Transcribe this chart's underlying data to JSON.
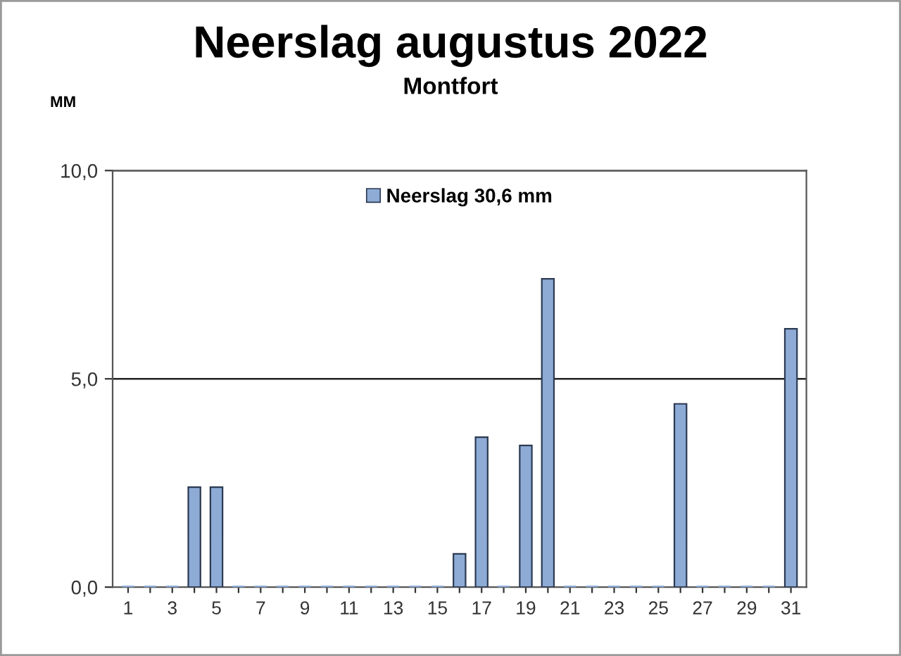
{
  "chart_data": {
    "type": "bar",
    "title": "Neerslag augustus 2022",
    "subtitle": "Montfort",
    "ylabel": "MM",
    "categories": [
      "1",
      null,
      "3",
      null,
      "5",
      null,
      "7",
      null,
      "9",
      null,
      "11",
      null,
      "13",
      null,
      "15",
      null,
      "17",
      null,
      "19",
      null,
      "21",
      null,
      "23",
      null,
      "25",
      null,
      "27",
      null,
      "29",
      null,
      "31"
    ],
    "series": [
      {
        "name": "Neerslag 30,6 mm",
        "color": "#8eabd6",
        "values": [
          0,
          0,
          0,
          2.4,
          2.4,
          0,
          0,
          0,
          0,
          0,
          0,
          0,
          0,
          0,
          0,
          0.8,
          3.6,
          0,
          3.4,
          7.4,
          0,
          0,
          0,
          0,
          0,
          4.4,
          0,
          0,
          0,
          0,
          6.2
        ]
      }
    ],
    "ylim": [
      0,
      10
    ],
    "yticks": [
      {
        "value": 0,
        "label": "0,0"
      },
      {
        "value": 5,
        "label": "5,0"
      },
      {
        "value": 10,
        "label": "10,0"
      }
    ],
    "grid": "y",
    "legend": "top"
  }
}
